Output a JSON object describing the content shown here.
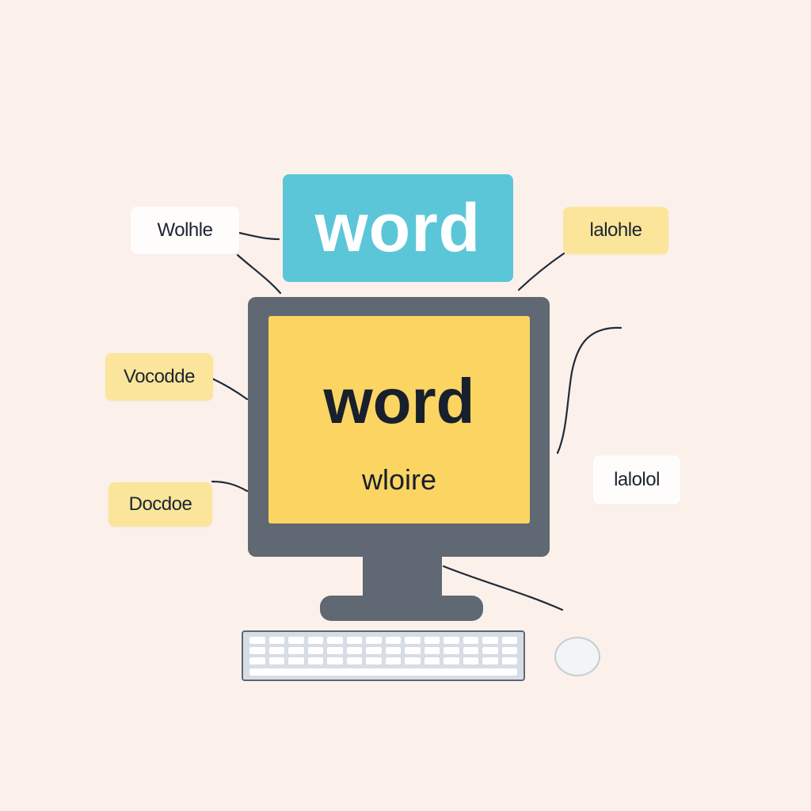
{
  "title": {
    "text": "word"
  },
  "screen": {
    "title": "word",
    "subtitle": "wloire"
  },
  "labels": [
    {
      "text": "Wolhle",
      "style": "white"
    },
    {
      "text": "lalohle",
      "style": "yellow"
    },
    {
      "text": "Vocodde",
      "style": "yellow"
    },
    {
      "text": "Docdoe",
      "style": "yellow"
    },
    {
      "text": "lalolol",
      "style": "white"
    }
  ],
  "colors": {
    "background": "#fcf1ea",
    "title_box": "#5cc6d9",
    "screen": "#fbd462",
    "monitor": "#5f6873",
    "label_yellow": "#fbe59a",
    "label_white": "#fffdfb",
    "connector": "#1f2a3a"
  },
  "icons": {
    "monitor": "desktop-monitor-icon",
    "keyboard": "keyboard-icon",
    "mouse": "mouse-icon"
  }
}
